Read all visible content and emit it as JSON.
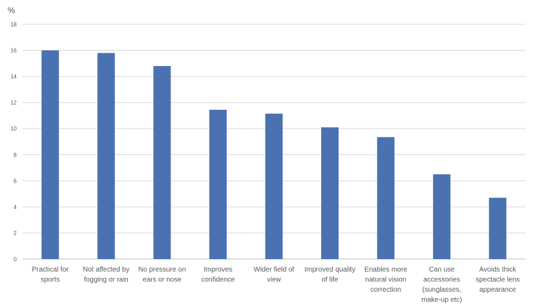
{
  "chart_data": {
    "type": "bar",
    "ylabel": "%",
    "ylim": [
      0,
      18
    ],
    "yticks": [
      "0",
      "2",
      "4",
      "6",
      "8",
      "10",
      "12",
      "14",
      "16",
      "18"
    ],
    "grid": true,
    "categories": [
      [
        "Practical for",
        "sports"
      ],
      [
        "Not affected by",
        "fogging or rain"
      ],
      [
        "No pressure on",
        "ears or nose"
      ],
      [
        "Improves",
        "confidence"
      ],
      [
        "Wider field of",
        "view"
      ],
      [
        "Improved quality",
        "of life"
      ],
      [
        "Enables more",
        "natural vision",
        "correction"
      ],
      [
        "Can use",
        "accessories",
        "(sunglasses,",
        "make-up etc)"
      ],
      [
        "Avoids thick",
        "spectacle lens",
        "appearance"
      ]
    ],
    "values": [
      16.0,
      15.8,
      14.8,
      11.45,
      11.15,
      10.1,
      9.35,
      6.5,
      4.7
    ],
    "colors": {
      "bar": "#4a72b0"
    }
  }
}
